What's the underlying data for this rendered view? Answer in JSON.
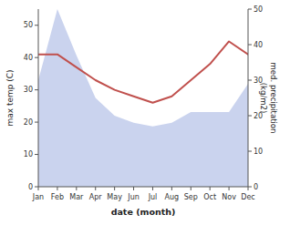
{
  "chart_data": {
    "type": "line",
    "x_label": "date (month)",
    "y_label": "max temp (C)",
    "y2_label": "med. precipitation\n(kg/m2)",
    "categories": [
      "Jan",
      "Feb",
      "Mar",
      "Apr",
      "May",
      "Jun",
      "Jul",
      "Aug",
      "Sep",
      "Oct",
      "Nov",
      "Dec"
    ],
    "series": [
      {
        "type": "area",
        "axis": "y2",
        "color": "#b8c4e8",
        "values": [
          30,
          50,
          37,
          25,
          20,
          18,
          17,
          18,
          21,
          21,
          21,
          29
        ]
      },
      {
        "type": "line",
        "color": "#c0504d",
        "values": [
          41,
          41,
          37,
          33,
          30,
          28,
          26,
          28,
          33,
          38,
          45,
          41
        ]
      }
    ],
    "ylim": [
      0,
      55
    ],
    "yticks": [
      0,
      10,
      20,
      30,
      40,
      50
    ],
    "y2lim": [
      0,
      50
    ],
    "y2ticks": [
      0,
      10,
      20,
      30,
      40,
      50
    ],
    "grid": false
  }
}
